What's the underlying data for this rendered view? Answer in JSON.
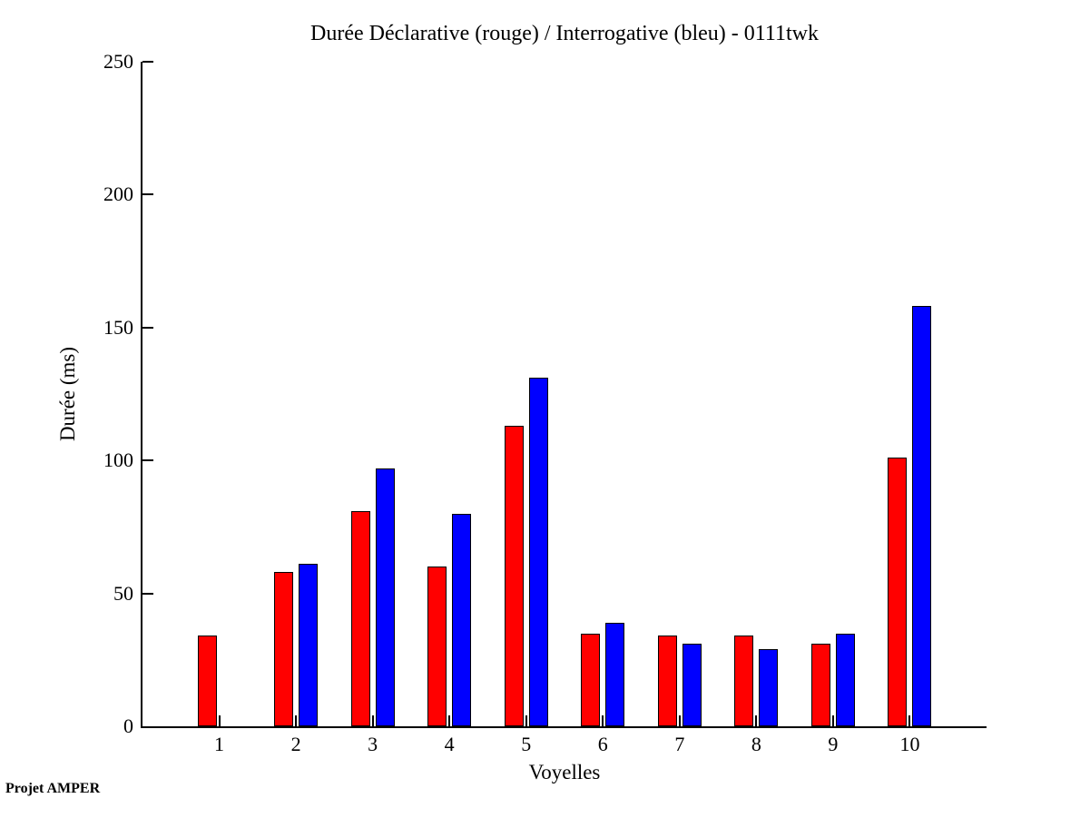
{
  "window": {
    "background": "#ffffff"
  },
  "footer": {
    "credit": "Projet AMPER"
  },
  "chart_data": {
    "type": "bar",
    "title": "Durée Déclarative (rouge) / Interrogative (bleu) - 0111twk",
    "xlabel": "Voyelles",
    "ylabel": "Durée (ms)",
    "categories": [
      "1",
      "2",
      "3",
      "4",
      "5",
      "6",
      "7",
      "8",
      "9",
      "10"
    ],
    "series": [
      {
        "name": "Declarative",
        "title_tag": "Déclarative (rouge)",
        "color": "#ff0000",
        "values": [
          34,
          58,
          81,
          60,
          113,
          35,
          34,
          34,
          31,
          101
        ]
      },
      {
        "name": "Interrogative",
        "title_tag": "Interrogative (bleu)",
        "color": "#0000ff",
        "values": [
          0,
          61,
          97,
          80,
          131,
          39,
          31,
          29,
          35,
          158
        ]
      }
    ],
    "ylim": [
      0,
      250
    ],
    "yticks": [
      0,
      50,
      100,
      150,
      200,
      250
    ],
    "xlim_units": [
      0,
      11
    ],
    "grid": false,
    "legend_position": "none",
    "bar_outline_color": "#000000",
    "axis_color": "#000000"
  }
}
